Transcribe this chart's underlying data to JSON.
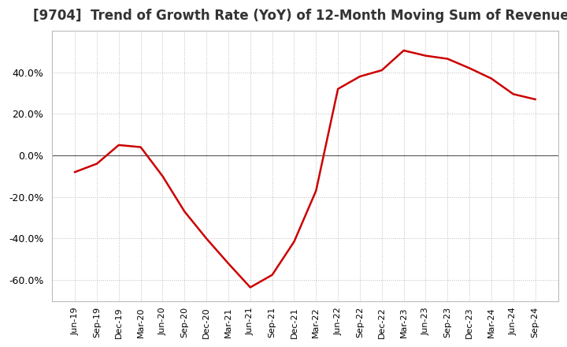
{
  "title": "[9704]  Trend of Growth Rate (YoY) of 12-Month Moving Sum of Revenues",
  "title_fontsize": 12,
  "line_color": "#cc0000",
  "background_color": "#ffffff",
  "plot_bg_color": "#ffffff",
  "grid_color": "#bbbbbb",
  "ylim": [
    -0.7,
    0.6
  ],
  "yticks": [
    -0.6,
    -0.4,
    -0.2,
    0.0,
    0.2,
    0.4
  ],
  "dates": [
    "Jun-19",
    "Sep-19",
    "Dec-19",
    "Mar-20",
    "Jun-20",
    "Sep-20",
    "Dec-20",
    "Mar-21",
    "Jun-21",
    "Sep-21",
    "Dec-21",
    "Mar-22",
    "Jun-22",
    "Sep-22",
    "Dec-22",
    "Mar-23",
    "Jun-23",
    "Sep-23",
    "Dec-23",
    "Mar-24",
    "Jun-24",
    "Sep-24"
  ],
  "values": [
    -0.08,
    -0.04,
    0.05,
    0.04,
    -0.1,
    -0.27,
    -0.4,
    -0.52,
    -0.635,
    -0.575,
    -0.415,
    -0.17,
    0.32,
    0.38,
    0.41,
    0.505,
    0.48,
    0.465,
    0.42,
    0.37,
    0.295,
    0.27
  ]
}
